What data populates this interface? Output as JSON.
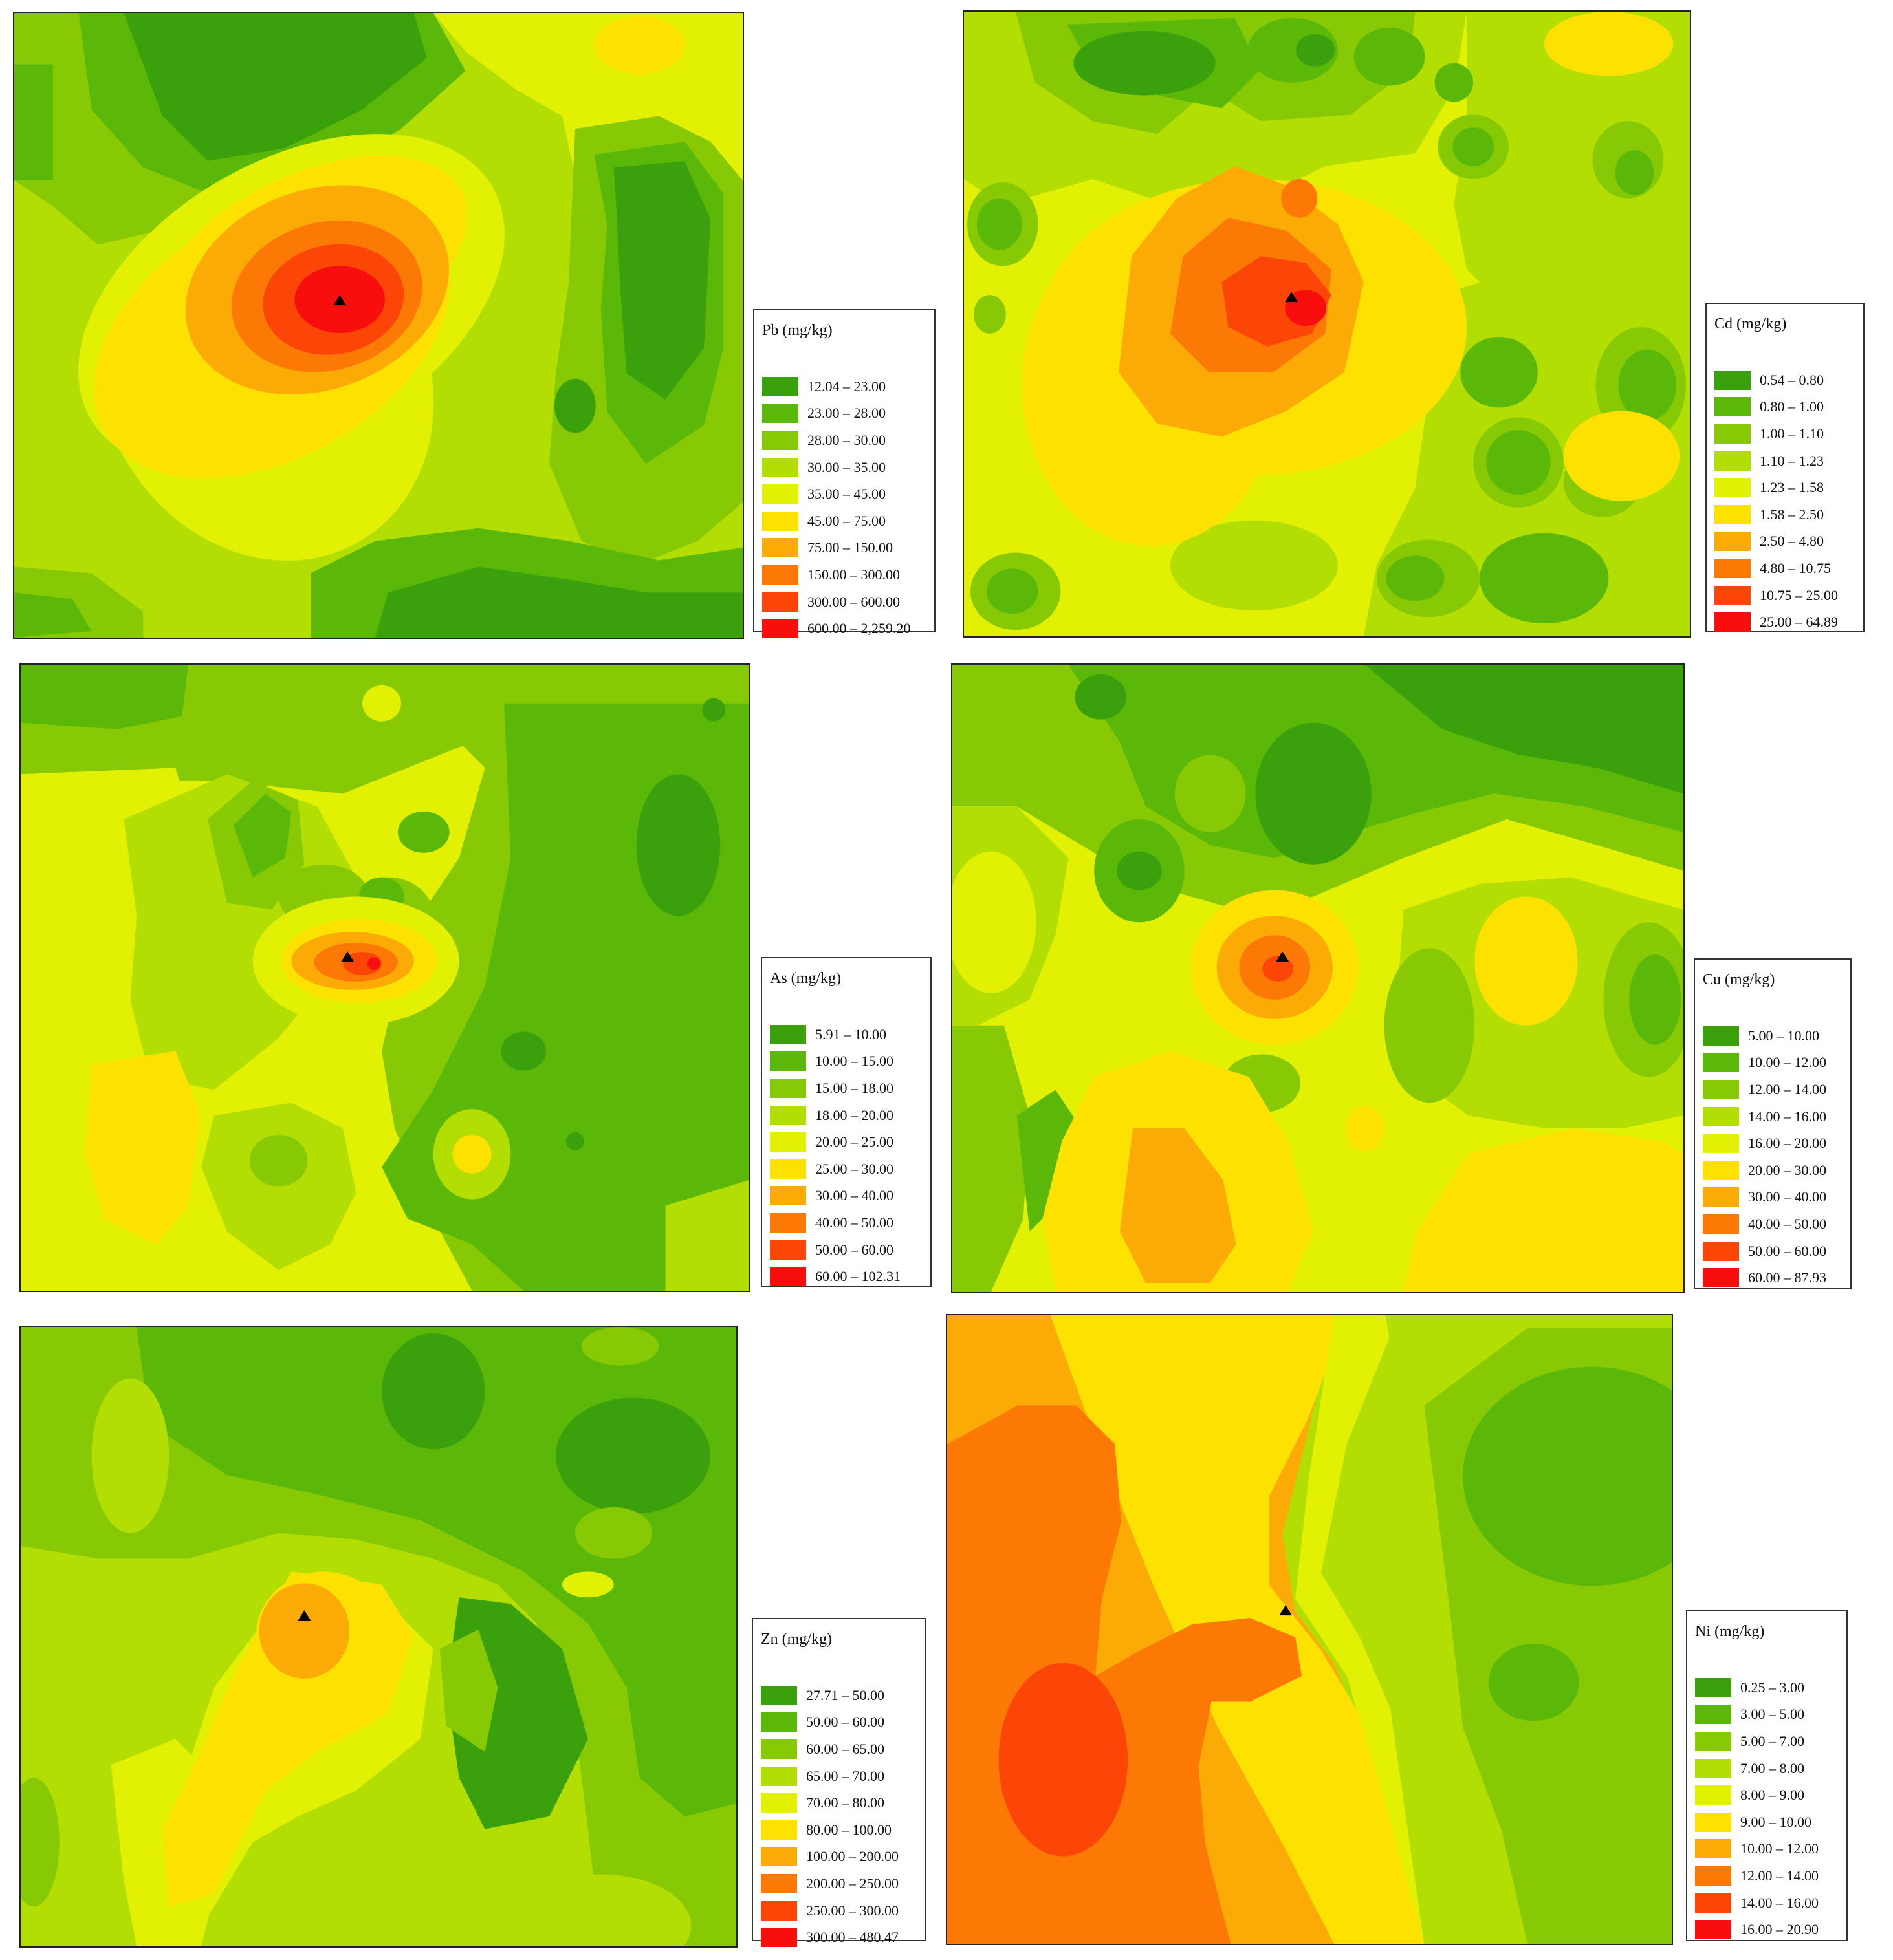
{
  "panels": [
    {
      "id": "pb",
      "legend_title": "Pb (mg/kg)",
      "classes": [
        "12.04 – 23.00",
        "23.00 – 28.00",
        "28.00 – 30.00",
        "30.00 – 35.00",
        "35.00 – 45.00",
        "45.00 – 75.00",
        "75.00 – 150.00",
        "150.00 – 300.00",
        "300.00 – 600.00",
        "600.00 – 2,259.20"
      ]
    },
    {
      "id": "cd",
      "legend_title": "Cd (mg/kg)",
      "classes": [
        "0.54 – 0.80",
        "0.80 – 1.00",
        "1.00 – 1.10",
        "1.10 – 1.23",
        "1.23 – 1.58",
        "1.58 – 2.50",
        "2.50 – 4.80",
        "4.80 – 10.75",
        "10.75 – 25.00",
        "25.00 – 64.89"
      ]
    },
    {
      "id": "as",
      "legend_title": "As  (mg/kg)",
      "classes": [
        "5.91 – 10.00",
        "10.00 – 15.00",
        "15.00 – 18.00",
        "18.00 – 20.00",
        "20.00 – 25.00",
        "25.00 – 30.00",
        "30.00 – 40.00",
        "40.00 – 50.00",
        "50.00 – 60.00",
        "60.00 – 102.31"
      ]
    },
    {
      "id": "cu",
      "legend_title": "Cu (mg/kg)",
      "classes": [
        "5.00 – 10.00",
        "10.00 – 12.00",
        "12.00 – 14.00",
        "14.00 – 16.00",
        "16.00 – 20.00",
        "20.00 – 30.00",
        "30.00 – 40.00",
        "40.00 – 50.00",
        "50.00 – 60.00",
        "60.00 – 87.93"
      ]
    },
    {
      "id": "zn",
      "legend_title": "Zn (mg/kg)",
      "classes": [
        "27.71 – 50.00",
        "50.00 – 60.00",
        "60.00 – 65.00",
        "65.00 – 70.00",
        "70.00 – 80.00",
        "80.00 – 100.00",
        "100.00 – 200.00",
        "200.00 – 250.00",
        "250.00 – 300.00",
        "300.00 – 480.47"
      ]
    },
    {
      "id": "ni",
      "legend_title": "Ni  (mg/kg)",
      "classes": [
        "0.25 – 3.00",
        "3.00 – 5.00",
        "5.00 – 7.00",
        "7.00 – 8.00",
        "8.00 – 9.00",
        "9.00 – 10.00",
        "10.00 – 12.00",
        "12.00 – 14.00",
        "14.00 – 16.00",
        "16.00 – 20.90"
      ]
    }
  ],
  "class_colors": [
    "#3aa10c",
    "#5bb808",
    "#86c904",
    "#b3de04",
    "#e2f103",
    "#fde100",
    "#fcaa05",
    "#fb7904",
    "#fb4607",
    "#f70e0d"
  ],
  "marker_icon": "sampling-site-triangle"
}
